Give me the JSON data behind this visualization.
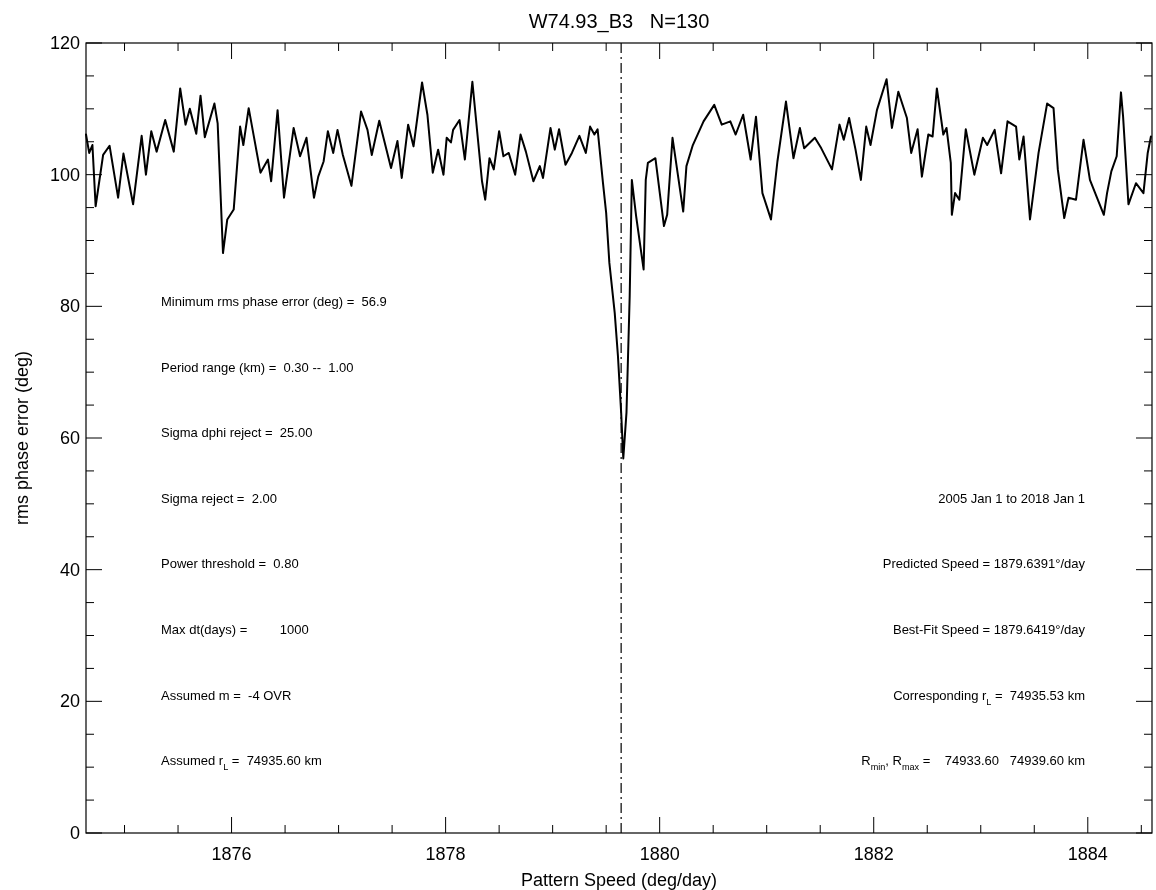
{
  "chart_data": {
    "type": "line",
    "title": "W74.93_B3   N=130",
    "xlabel": "Pattern Speed (deg/day)",
    "ylabel": "rms phase error (deg)",
    "xlim": [
      1874.64,
      1884.6
    ],
    "xticks": [
      1876,
      1878,
      1880,
      1882,
      1884
    ],
    "ylim": [
      0,
      120
    ],
    "yticks": [
      0,
      20,
      40,
      60,
      80,
      100,
      120
    ],
    "grid": false,
    "marker": "none",
    "line_style": "solid",
    "ref_lines": [
      {
        "axis": "x",
        "value": 1879.64,
        "line_style": "dashed",
        "color": "#000000"
      }
    ],
    "annotations": [
      "Minimum rms phase error (deg) =  56.9",
      "Period range (km) =  0.30 --  1.00",
      "Sigma dphi reject =  25.00",
      "Sigma reject =  2.00",
      "Power threshold =  0.80",
      "Max dt(days) =         1000",
      "Assumed m =  -4 OVR",
      "Assumed r$_{L}$ =  74935.60 km",
      "2005 Jan 1 to 2018 Jan 1",
      "Predicted Speed = 1879.6391°/day",
      "Best-Fit Speed = 1879.6419°/day",
      "Corresponding r$_{L}$ =  74935.53 km",
      "R$_{min}$, R$_{max}$ =    74933.60   74939.60 km"
    ],
    "series": [
      {
        "color": "#000000",
        "x": [
          1874.64,
          1874.67,
          1874.7,
          1874.73,
          1874.8,
          1874.86,
          1874.94,
          1874.99,
          1875.08,
          1875.16,
          1875.2,
          1875.25,
          1875.3,
          1875.38,
          1875.46,
          1875.52,
          1875.57,
          1875.61,
          1875.67,
          1875.71,
          1875.75,
          1875.84,
          1875.87,
          1875.92,
          1875.96,
          1876.02,
          1876.08,
          1876.11,
          1876.16,
          1876.27,
          1876.34,
          1876.37,
          1876.43,
          1876.49,
          1876.58,
          1876.64,
          1876.7,
          1876.77,
          1876.81,
          1876.86,
          1876.9,
          1876.95,
          1876.99,
          1877.04,
          1877.12,
          1877.21,
          1877.27,
          1877.31,
          1877.38,
          1877.49,
          1877.55,
          1877.59,
          1877.65,
          1877.7,
          1877.78,
          1877.83,
          1877.88,
          1877.93,
          1877.98,
          1878.01,
          1878.05,
          1878.07,
          1878.13,
          1878.18,
          1878.25,
          1878.34,
          1878.37,
          1878.41,
          1878.45,
          1878.5,
          1878.54,
          1878.59,
          1878.65,
          1878.7,
          1878.75,
          1878.82,
          1878.88,
          1878.91,
          1878.98,
          1879.02,
          1879.06,
          1879.12,
          1879.18,
          1879.25,
          1879.31,
          1879.35,
          1879.39,
          1879.42,
          1879.47,
          1879.5,
          1879.53,
          1879.58,
          1879.61,
          1879.64,
          1879.66,
          1879.69,
          1879.72,
          1879.74,
          1879.78,
          1879.85,
          1879.87,
          1879.89,
          1879.96,
          1880.04,
          1880.07,
          1880.12,
          1880.22,
          1880.25,
          1880.31,
          1880.41,
          1880.51,
          1880.58,
          1880.66,
          1880.71,
          1880.78,
          1880.85,
          1880.9,
          1880.96,
          1881.04,
          1881.1,
          1881.18,
          1881.25,
          1881.31,
          1881.35,
          1881.45,
          1881.51,
          1881.61,
          1881.68,
          1881.72,
          1881.77,
          1881.83,
          1881.88,
          1881.93,
          1881.97,
          1882.03,
          1882.12,
          1882.17,
          1882.23,
          1882.31,
          1882.35,
          1882.41,
          1882.45,
          1882.51,
          1882.55,
          1882.59,
          1882.65,
          1882.68,
          1882.72,
          1882.73,
          1882.76,
          1882.8,
          1882.86,
          1882.94,
          1883.02,
          1883.06,
          1883.13,
          1883.19,
          1883.25,
          1883.33,
          1883.36,
          1883.4,
          1883.46,
          1883.54,
          1883.62,
          1883.68,
          1883.72,
          1883.78,
          1883.82,
          1883.89,
          1883.96,
          1884.02,
          1884.15,
          1884.18,
          1884.22,
          1884.27,
          1884.31,
          1884.33,
          1884.38,
          1884.45,
          1884.52,
          1884.56,
          1884.59
        ],
        "values": [
          106.1,
          103.3,
          104.5,
          95.2,
          103.0,
          104.4,
          96.5,
          103.2,
          95.5,
          105.9,
          100.0,
          106.6,
          103.5,
          108.3,
          103.5,
          113.1,
          107.6,
          110.0,
          106.2,
          112.0,
          105.7,
          110.8,
          107.8,
          88.1,
          93.2,
          94.7,
          107.3,
          104.5,
          110.1,
          100.3,
          102.3,
          99.0,
          109.8,
          96.5,
          107.1,
          102.8,
          105.6,
          96.5,
          99.7,
          102.0,
          106.6,
          103.3,
          106.8,
          103.0,
          98.3,
          109.6,
          106.8,
          103.0,
          108.2,
          101.0,
          105.1,
          99.5,
          107.6,
          104.3,
          114.0,
          109.1,
          100.3,
          103.8,
          100.0,
          105.6,
          104.9,
          106.8,
          108.3,
          102.3,
          114.1,
          99.0,
          96.2,
          102.5,
          100.8,
          106.6,
          102.8,
          103.3,
          100.0,
          106.1,
          103.5,
          99.0,
          101.3,
          99.5,
          107.1,
          103.8,
          106.9,
          101.5,
          103.3,
          105.9,
          103.3,
          107.3,
          106.1,
          106.9,
          98.8,
          94.2,
          86.6,
          79.0,
          72.5,
          63.9,
          56.9,
          63.9,
          81.6,
          99.2,
          93.7,
          85.6,
          99.2,
          101.8,
          102.5,
          92.2,
          93.9,
          105.6,
          94.4,
          101.3,
          104.5,
          108.1,
          110.6,
          107.6,
          108.1,
          106.1,
          109.1,
          102.3,
          108.8,
          97.2,
          93.2,
          102.0,
          111.1,
          102.5,
          107.1,
          104.0,
          105.6,
          104.0,
          100.8,
          107.6,
          105.3,
          108.6,
          103.8,
          99.2,
          107.3,
          104.5,
          109.8,
          114.5,
          107.1,
          112.6,
          108.6,
          103.3,
          106.9,
          99.7,
          106.1,
          105.8,
          113.1,
          106.1,
          107.1,
          101.8,
          93.9,
          97.2,
          96.2,
          106.9,
          100.0,
          105.6,
          104.5,
          106.8,
          100.2,
          108.1,
          107.3,
          102.3,
          105.8,
          93.2,
          103.3,
          110.8,
          110.1,
          100.8,
          93.4,
          96.5,
          96.2,
          105.3,
          99.2,
          93.9,
          97.2,
          100.5,
          102.8,
          112.5,
          108.8,
          95.5,
          98.7,
          97.2,
          103.3,
          105.8
        ]
      }
    ]
  }
}
